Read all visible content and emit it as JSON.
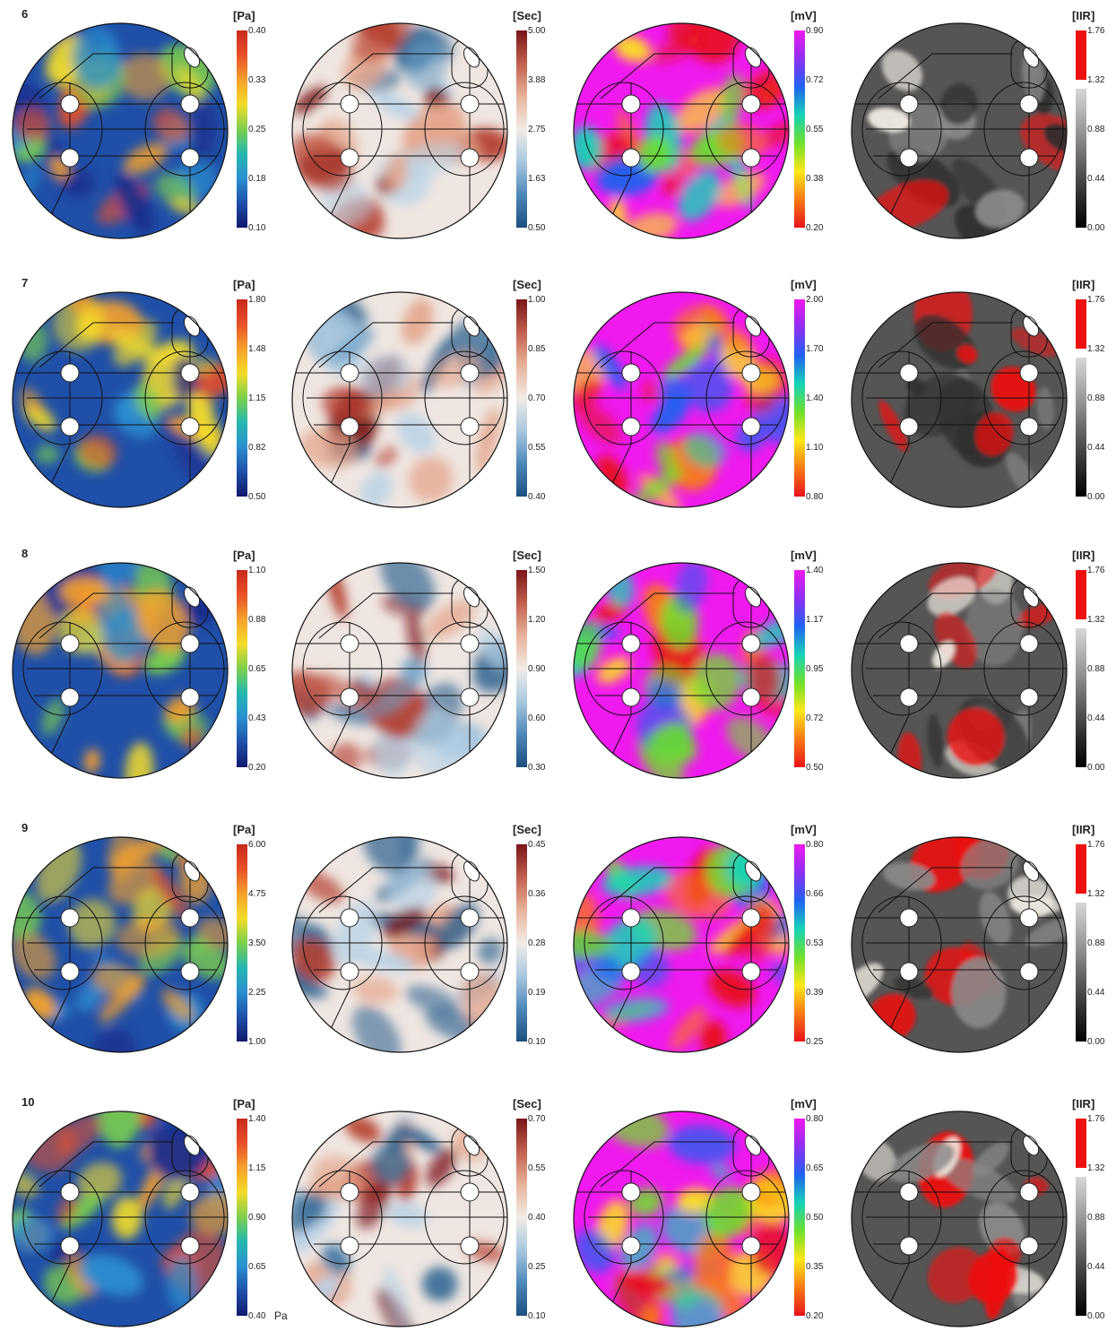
{
  "figure": {
    "columns": [
      {
        "key": "pa",
        "unit": "[Pa]",
        "colormap": "turbo",
        "colors": [
          "#10186e",
          "#1f4fa8",
          "#2a8fd0",
          "#25b8b0",
          "#7ccf4c",
          "#f3dc2a",
          "#f5a12b",
          "#e8502a",
          "#c72a1a"
        ],
        "background": "#1f4fa8",
        "blotch_colors": [
          "#1a2b8c",
          "#2a8fd0",
          "#7ccf4c",
          "#f3dc2a",
          "#f5a12b",
          "#e8502a"
        ]
      },
      {
        "key": "sec",
        "unit": "[Sec]",
        "colormap": "blue-white-red",
        "colors": [
          "#1c4f7e",
          "#4d88b8",
          "#a9c8df",
          "#f2ece7",
          "#e7b39a",
          "#c25f4e",
          "#7b1418"
        ],
        "background": "#efe6e1",
        "blotch_colors": [
          "#2c6390",
          "#6ea1c8",
          "#b8d2e6",
          "#e4a58a",
          "#b6402f",
          "#7b1418"
        ]
      },
      {
        "key": "mv",
        "unit": "[mV]",
        "colormap": "rainbow",
        "colors": [
          "#e8121a",
          "#f87a14",
          "#fbe81a",
          "#6ee02a",
          "#17d3b8",
          "#1f62f0",
          "#8e2ff2",
          "#f019ef"
        ],
        "background": "#f019ef",
        "blotch_colors": [
          "#e8121a",
          "#f87a14",
          "#fbe81a",
          "#6ee02a",
          "#17d3b8",
          "#1f62f0"
        ]
      },
      {
        "key": "iir",
        "unit": "[IIR]",
        "colormap": "gray-red",
        "colors": [
          "#000000",
          "#333333",
          "#6b6b6b",
          "#a4a4a4",
          "#d7d7d7"
        ],
        "background": "#555555",
        "blotch_colors": [
          "#ee1111",
          "#ee1111",
          "#f4efe6",
          "#2f2f2f",
          "#8a8a8a"
        ]
      }
    ],
    "rows": [
      {
        "label": "6",
        "ticks": [
          [
            "0.40",
            "0.33",
            "0.25",
            "0.18",
            "0.10"
          ],
          [
            "5.00",
            "3.88",
            "2.75",
            "1.63",
            "0.50"
          ],
          [
            "0.90",
            "0.72",
            "0.55",
            "0.38",
            "0.20"
          ],
          [
            "1.76",
            "1.32",
            "0.88",
            "0.44",
            "0.00"
          ]
        ]
      },
      {
        "label": "7",
        "ticks": [
          [
            "1.80",
            "1.48",
            "1.15",
            "0.82",
            "0.50"
          ],
          [
            "1.00",
            "0.85",
            "0.70",
            "0.55",
            "0.40"
          ],
          [
            "2.00",
            "1.70",
            "1.40",
            "1.10",
            "0.80"
          ],
          [
            "1.76",
            "1.32",
            "0.88",
            "0.44",
            "0.00"
          ]
        ]
      },
      {
        "label": "8",
        "ticks": [
          [
            "1.10",
            "0.88",
            "0.65",
            "0.43",
            "0.20"
          ],
          [
            "1.50",
            "1.20",
            "0.90",
            "0.60",
            "0.30"
          ],
          [
            "1.40",
            "1.17",
            "0.95",
            "0.72",
            "0.50"
          ],
          [
            "1.76",
            "1.32",
            "0.88",
            "0.44",
            "0.00"
          ]
        ]
      },
      {
        "label": "9",
        "ticks": [
          [
            "6.00",
            "4.75",
            "3.50",
            "2.25",
            "1.00"
          ],
          [
            "0.45",
            "0.36",
            "0.28",
            "0.19",
            "0.10"
          ],
          [
            "0.80",
            "0.66",
            "0.53",
            "0.39",
            "0.25"
          ],
          [
            "1.76",
            "1.32",
            "0.88",
            "0.44",
            "0.00"
          ]
        ]
      },
      {
        "label": "10",
        "ticks": [
          [
            "1.40",
            "1.15",
            "0.90",
            "0.65",
            "0.40"
          ],
          [
            "0.70",
            "0.55",
            "0.40",
            "0.25",
            "0.10"
          ],
          [
            "0.80",
            "0.65",
            "0.50",
            "0.35",
            "0.20"
          ],
          [
            "1.76",
            "1.32",
            "0.88",
            "0.44",
            "0.00"
          ]
        ]
      }
    ],
    "extra_labels": [
      {
        "row": 4,
        "col": 0,
        "text": "Pa"
      }
    ]
  }
}
